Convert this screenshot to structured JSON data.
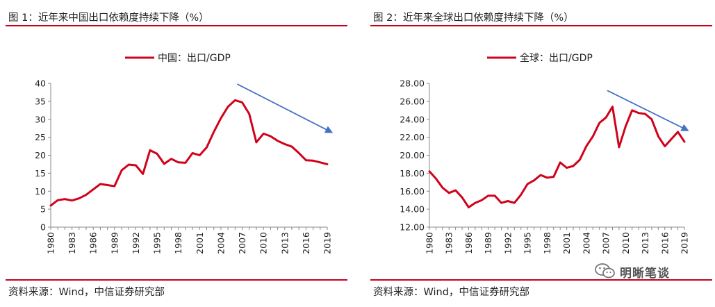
{
  "panels": [
    {
      "title": "图 1：近年来中国出口依赖度持续下降（%）",
      "source": "资料来源：Wind，中信证券研究部"
    },
    {
      "title": "图 2：近年来全球出口依赖度持续下降（%）",
      "source": "资料来源：Wind，中信证券研究部"
    }
  ],
  "watermark": {
    "text": "明晰笔谈",
    "icon": "wechat-icon"
  },
  "chart_data": [
    {
      "type": "line",
      "title": "",
      "xlabel": "",
      "ylabel": "",
      "legend_position": "top-center",
      "grid": false,
      "x": [
        1980,
        1981,
        1982,
        1983,
        1984,
        1985,
        1986,
        1987,
        1988,
        1989,
        1990,
        1991,
        1992,
        1993,
        1994,
        1995,
        1996,
        1997,
        1998,
        1999,
        2000,
        2001,
        2002,
        2003,
        2004,
        2005,
        2006,
        2007,
        2008,
        2009,
        2010,
        2011,
        2012,
        2013,
        2014,
        2015,
        2016,
        2017,
        2018,
        2019
      ],
      "series": [
        {
          "name": "中国：出口/GDP",
          "color": "#d0021b",
          "values": [
            6.0,
            7.5,
            7.8,
            7.4,
            8.0,
            9.0,
            10.5,
            12.0,
            11.7,
            11.4,
            15.8,
            17.4,
            17.2,
            14.8,
            21.4,
            20.4,
            17.6,
            19.0,
            18.0,
            17.9,
            20.6,
            20.0,
            22.2,
            26.5,
            30.3,
            33.5,
            35.3,
            34.7,
            31.5,
            23.6,
            26.0,
            25.3,
            24.0,
            23.1,
            22.4,
            20.6,
            18.6,
            18.5,
            18.0,
            17.5
          ]
        }
      ],
      "x_ticks": [
        "1980",
        "1983",
        "1986",
        "1989",
        "1992",
        "1995",
        "1998",
        "2001",
        "2004",
        "2007",
        "2010",
        "2013",
        "2016",
        "2019"
      ],
      "y_ticks": [
        "0",
        "5",
        "10",
        "15",
        "20",
        "25",
        "30",
        "35",
        "40"
      ],
      "ylim": [
        0,
        40
      ],
      "arrow_color": "#4472c4",
      "trend_arrow": {
        "from": [
          2006.3,
          39.8
        ],
        "to": [
          2019.8,
          26.2
        ]
      }
    },
    {
      "type": "line",
      "title": "",
      "xlabel": "",
      "ylabel": "",
      "legend_position": "top-center",
      "grid": false,
      "x": [
        1980,
        1981,
        1982,
        1983,
        1984,
        1985,
        1986,
        1987,
        1988,
        1989,
        1990,
        1991,
        1992,
        1993,
        1994,
        1995,
        1996,
        1997,
        1998,
        1999,
        2000,
        2001,
        2002,
        2003,
        2004,
        2005,
        2006,
        2007,
        2008,
        2009,
        2010,
        2011,
        2012,
        2013,
        2014,
        2015,
        2016,
        2017,
        2018,
        2019
      ],
      "series": [
        {
          "name": "全球：出口/GDP",
          "color": "#d0021b",
          "values": [
            18.2,
            17.4,
            16.4,
            15.8,
            16.1,
            15.3,
            14.2,
            14.7,
            15.0,
            15.5,
            15.5,
            14.7,
            14.9,
            14.7,
            15.6,
            16.8,
            17.2,
            17.8,
            17.5,
            17.6,
            19.2,
            18.6,
            18.8,
            19.5,
            21.0,
            22.1,
            23.6,
            24.2,
            25.4,
            20.9,
            23.2,
            25.0,
            24.7,
            24.6,
            24.0,
            22.1,
            21.0,
            21.8,
            22.6,
            21.5
          ]
        }
      ],
      "x_ticks": [
        "1980",
        "1983",
        "1986",
        "1989",
        "1992",
        "1995",
        "1998",
        "2001",
        "2004",
        "2007",
        "2010",
        "2013",
        "2016",
        "2019"
      ],
      "y_ticks": [
        "12.00",
        "14.00",
        "16.00",
        "18.00",
        "20.00",
        "22.00",
        "24.00",
        "26.00",
        "28.00"
      ],
      "ylim": [
        12,
        28
      ],
      "arrow_color": "#4472c4",
      "trend_arrow": {
        "from": [
          2007.2,
          27.2
        ],
        "to": [
          2019.7,
          22.7
        ]
      }
    }
  ]
}
